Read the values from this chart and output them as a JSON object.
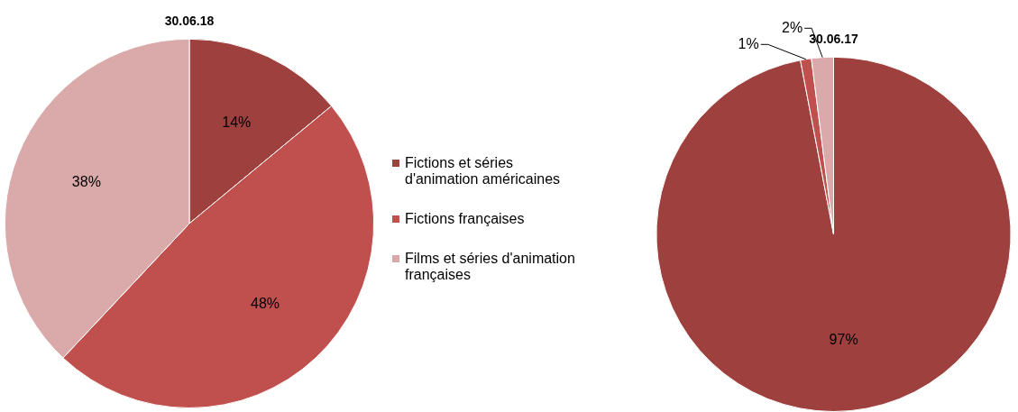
{
  "chart_data": [
    {
      "type": "pie",
      "title": "30.06.18",
      "categories": [
        "Fictions et séries d'animation américaines",
        "Fictions françaises",
        "Films et séries d'animation françaises"
      ],
      "values": [
        14,
        48,
        38
      ],
      "colors": [
        "#9e413e",
        "#c0504d",
        "#d9aaa9"
      ],
      "value_labels": [
        "14%",
        "48%",
        "38%"
      ],
      "legend": "right"
    },
    {
      "type": "pie",
      "title": "30.06.17",
      "categories": [
        null,
        null,
        null
      ],
      "values": [
        97,
        1,
        2
      ],
      "colors": [
        "#9e413e",
        "#c0504d",
        "#d9aaa9"
      ],
      "value_labels": [
        "97%",
        "1%",
        "2%"
      ]
    }
  ]
}
